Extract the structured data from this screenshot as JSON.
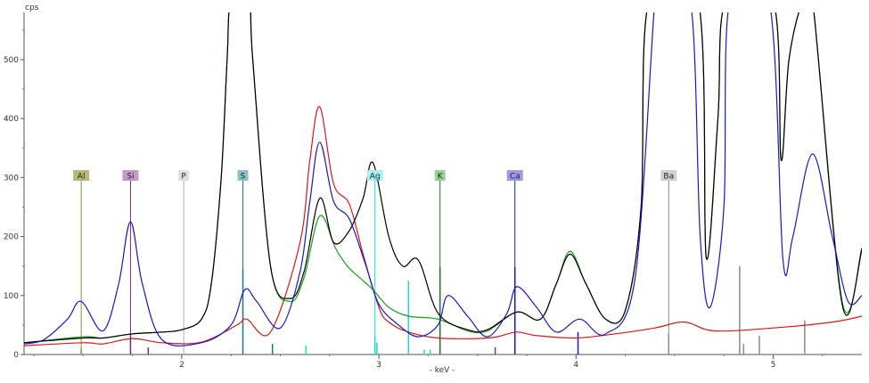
{
  "chart_data": {
    "type": "line",
    "title": "",
    "ylabel": "cps",
    "xlabel": "- keV -",
    "xlim": [
      1.2,
      5.45
    ],
    "ylim": [
      0,
      580
    ],
    "grid": false,
    "x_ticks": [
      {
        "value": 2,
        "label": "2"
      },
      {
        "value": 3,
        "label": "3"
      },
      {
        "value": 4,
        "label": "4"
      },
      {
        "value": 5,
        "label": "5"
      }
    ],
    "y_ticks": [
      {
        "value": 0,
        "label": "0"
      },
      {
        "value": 100,
        "label": "100"
      },
      {
        "value": 200,
        "label": "200"
      },
      {
        "value": 300,
        "label": "300"
      },
      {
        "value": 400,
        "label": "400"
      },
      {
        "value": 500,
        "label": "500"
      }
    ],
    "element_markers": [
      {
        "label": "Al",
        "energy": 1.49,
        "color": "#8a8a3a",
        "bg": "#b9b97a"
      },
      {
        "label": "Si",
        "energy": 1.74,
        "color": "#7a2a7a",
        "bg": "#c79ac7"
      },
      {
        "label": "P",
        "energy": 2.01,
        "color": "#b0b0b0",
        "bg": "#e0e0e0"
      },
      {
        "label": "S",
        "energy": 2.31,
        "color": "#1a7a7a",
        "bg": "#8ac4c4"
      },
      {
        "label": "Ag",
        "energy": 2.98,
        "color": "#20d8d8",
        "bg": "#a8f0f0"
      },
      {
        "label": "K",
        "energy": 3.31,
        "color": "#1a7a1a",
        "bg": "#9ad09a"
      },
      {
        "label": "Ca",
        "energy": 3.69,
        "color": "#1a1ac8",
        "bg": "#9a9ae8"
      },
      {
        "label": "Ba",
        "energy": 4.47,
        "color": "#8a8a8a",
        "bg": "#d0d0d0"
      }
    ],
    "emission_lines": [
      {
        "energy": 1.49,
        "height": 10,
        "color": "#8a8a3a"
      },
      {
        "energy": 1.74,
        "height": 35,
        "color": "#7a2a7a"
      },
      {
        "energy": 1.83,
        "height": 12,
        "color": "#7a2a7a"
      },
      {
        "energy": 2.31,
        "height": 145,
        "color": "#1a7a7a"
      },
      {
        "energy": 2.46,
        "height": 18,
        "color": "#1a7a7a"
      },
      {
        "energy": 2.63,
        "height": 15,
        "color": "#20d8d8"
      },
      {
        "energy": 2.98,
        "height": 30,
        "color": "#20d8d8"
      },
      {
        "energy": 2.99,
        "height": 20,
        "color": "#20d8d8"
      },
      {
        "energy": 3.15,
        "height": 125,
        "color": "#20d8d8"
      },
      {
        "energy": 3.23,
        "height": 8,
        "color": "#20d8d8"
      },
      {
        "energy": 3.26,
        "height": 8,
        "color": "#20d8d8"
      },
      {
        "energy": 3.31,
        "height": 148,
        "color": "#1a7a1a"
      },
      {
        "energy": 3.59,
        "height": 12,
        "color": "#1a7a1a"
      },
      {
        "energy": 3.69,
        "height": 148,
        "color": "#1a1ac8"
      },
      {
        "energy": 4.01,
        "height": 38,
        "color": "#1a1ac8"
      },
      {
        "energy": 4.47,
        "height": 35,
        "color": "#8a8a8a"
      },
      {
        "energy": 4.83,
        "height": 150,
        "color": "#8a8a8a"
      },
      {
        "energy": 4.85,
        "height": 18,
        "color": "#8a8a8a"
      },
      {
        "energy": 4.93,
        "height": 32,
        "color": "#8a8a8a"
      },
      {
        "energy": 5.16,
        "height": 58,
        "color": "#8a8a8a"
      }
    ],
    "series": [
      {
        "color": "#d81818",
        "x": [
          1.2,
          1.5,
          1.6,
          1.75,
          1.9,
          2.1,
          2.28,
          2.33,
          2.45,
          2.6,
          2.65,
          2.7,
          2.77,
          2.85,
          2.92,
          3.0,
          3.05,
          3.15,
          3.3,
          3.5,
          3.6,
          3.7,
          3.8,
          4.0,
          4.2,
          4.4,
          4.55,
          4.7,
          5.0,
          5.3,
          5.45
        ],
        "values": [
          15,
          20,
          18,
          27,
          20,
          21,
          50,
          60,
          38,
          190,
          330,
          420,
          290,
          255,
          170,
          80,
          55,
          38,
          28,
          27,
          30,
          38,
          32,
          28,
          35,
          45,
          55,
          40,
          45,
          55,
          65
        ]
      },
      {
        "color": "#18a018",
        "x": [
          1.2,
          1.5,
          1.6,
          1.75,
          1.9,
          2.0,
          2.1,
          2.15,
          2.2,
          2.23,
          2.25,
          2.34,
          2.36,
          2.45,
          2.55,
          2.62,
          2.7,
          2.78,
          2.84,
          2.92,
          2.97,
          3.05,
          3.15,
          3.3,
          3.45,
          3.55,
          3.7,
          3.82,
          3.9,
          3.97,
          4.05,
          4.15,
          4.25,
          4.33,
          4.37,
          4.62,
          4.66,
          4.72,
          4.76,
          5.0,
          5.04,
          5.08,
          5.15,
          5.2,
          5.35,
          5.45
        ],
        "values": [
          20,
          30,
          28,
          35,
          38,
          42,
          60,
          120,
          300,
          500,
          600,
          600,
          500,
          150,
          90,
          130,
          235,
          180,
          150,
          125,
          110,
          80,
          65,
          60,
          40,
          40,
          72,
          60,
          120,
          175,
          120,
          60,
          75,
          250,
          600,
          600,
          165,
          400,
          600,
          600,
          330,
          500,
          600,
          600,
          90,
          175
        ]
      },
      {
        "color": "#000000",
        "x": [
          1.2,
          1.5,
          1.6,
          1.75,
          1.9,
          2.0,
          2.1,
          2.15,
          2.2,
          2.23,
          2.25,
          2.34,
          2.36,
          2.45,
          2.55,
          2.62,
          2.7,
          2.77,
          2.85,
          2.92,
          2.97,
          3.05,
          3.12,
          3.2,
          3.3,
          3.45,
          3.55,
          3.7,
          3.82,
          3.9,
          3.97,
          4.05,
          4.15,
          4.25,
          4.33,
          4.37,
          4.62,
          4.66,
          4.72,
          4.76,
          5.0,
          5.04,
          5.08,
          5.15,
          5.2,
          5.35,
          5.45
        ],
        "values": [
          20,
          28,
          28,
          35,
          38,
          42,
          60,
          120,
          300,
          500,
          600,
          600,
          500,
          150,
          95,
          140,
          265,
          190,
          210,
          265,
          325,
          200,
          150,
          160,
          70,
          42,
          42,
          72,
          60,
          120,
          170,
          120,
          60,
          75,
          250,
          600,
          600,
          165,
          400,
          600,
          600,
          330,
          500,
          600,
          600,
          85,
          180
        ]
      },
      {
        "color": "#1818c8",
        "x": [
          1.2,
          1.3,
          1.42,
          1.49,
          1.6,
          1.68,
          1.74,
          1.8,
          1.9,
          2.1,
          2.25,
          2.32,
          2.38,
          2.5,
          2.6,
          2.65,
          2.7,
          2.77,
          2.85,
          2.93,
          3.0,
          3.1,
          3.2,
          3.3,
          3.35,
          3.45,
          3.55,
          3.65,
          3.7,
          3.8,
          3.9,
          4.02,
          4.15,
          4.3,
          4.4,
          4.43,
          4.58,
          4.63,
          4.68,
          4.75,
          4.78,
          4.98,
          5.05,
          5.1,
          5.2,
          5.3,
          5.38,
          5.45
        ],
        "values": [
          18,
          25,
          60,
          90,
          40,
          120,
          225,
          120,
          25,
          20,
          50,
          110,
          90,
          45,
          140,
          260,
          360,
          260,
          230,
          155,
          85,
          50,
          30,
          50,
          100,
          65,
          30,
          70,
          115,
          80,
          38,
          60,
          35,
          130,
          600,
          600,
          600,
          200,
          80,
          250,
          600,
          600,
          160,
          200,
          340,
          200,
          90,
          100
        ]
      }
    ]
  }
}
